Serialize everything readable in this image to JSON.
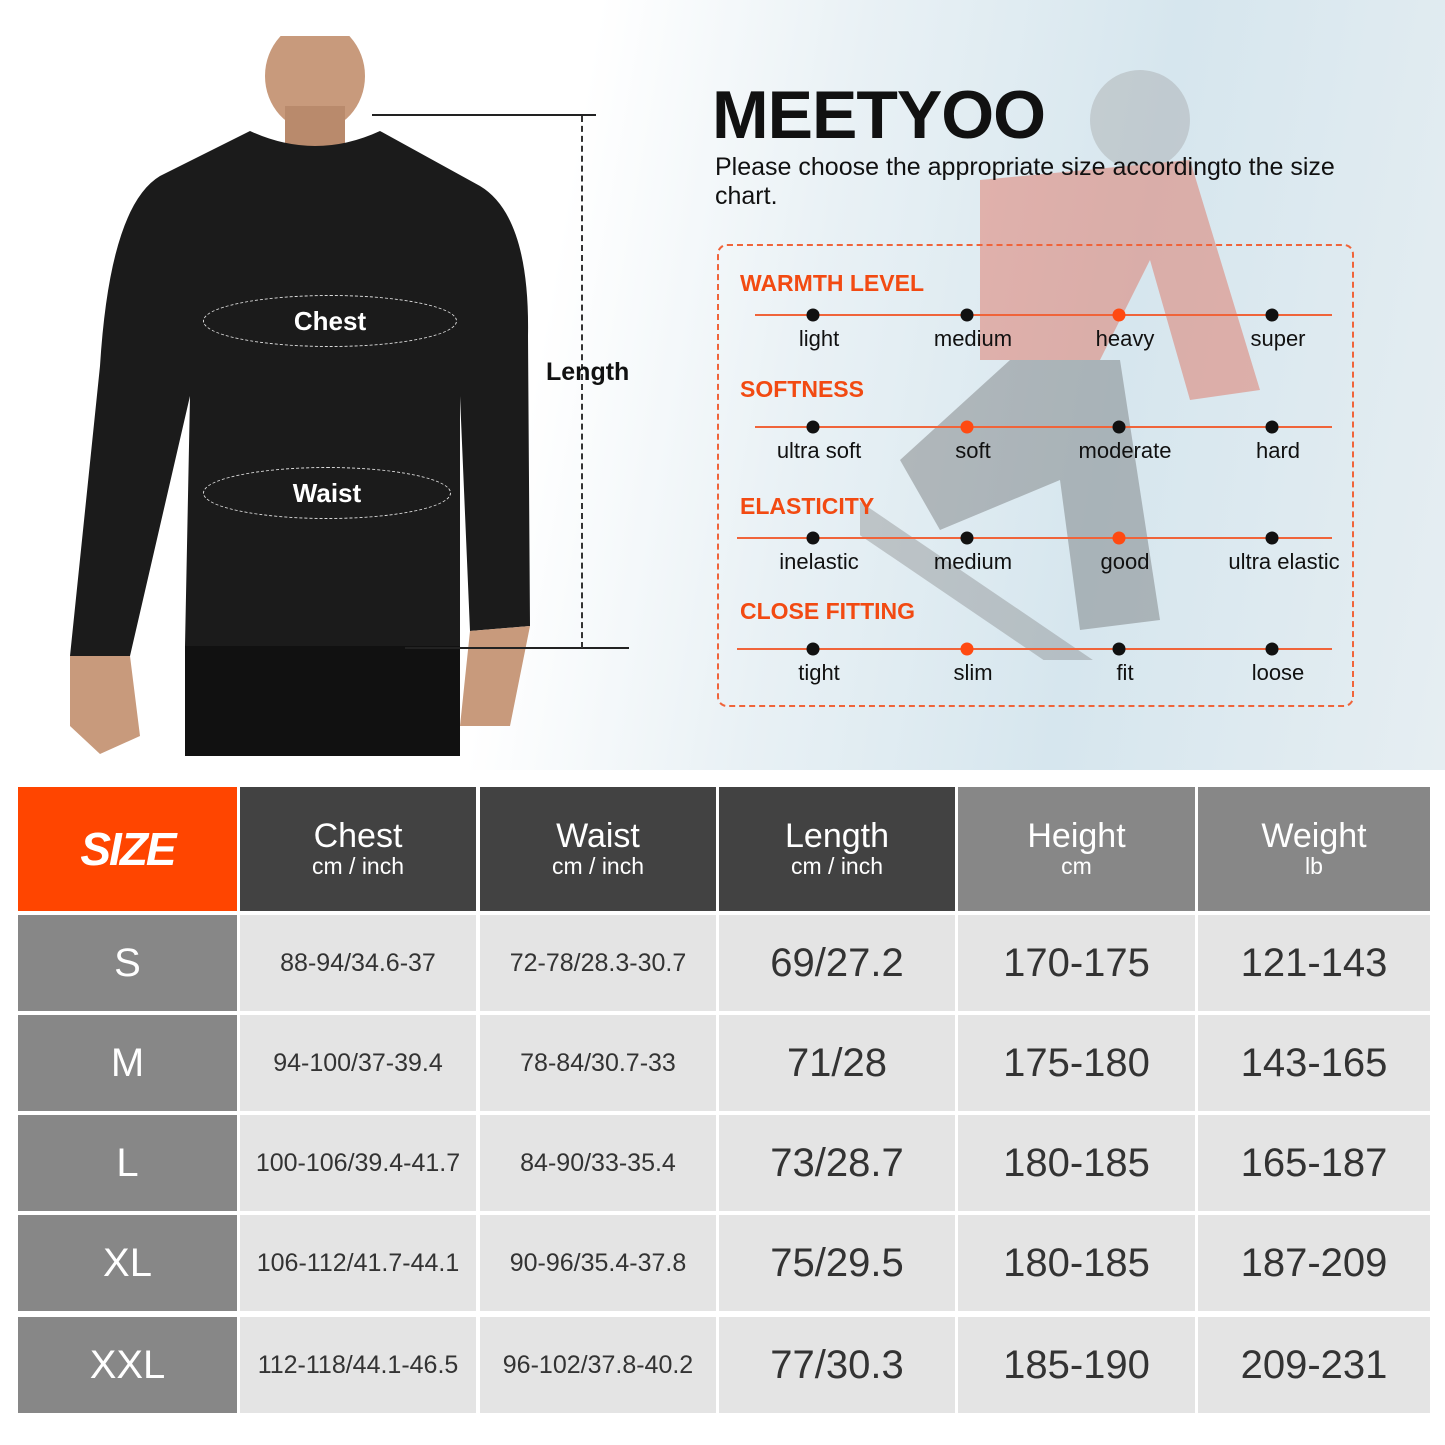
{
  "brand": "MEETYOO",
  "intro": "Please choose the appropriate size accordingto the size chart.",
  "figure": {
    "chest_label": "Chest",
    "waist_label": "Waist",
    "length_label": "Length"
  },
  "colors": {
    "accent": "#ff4500",
    "dark_header": "#424242",
    "gray_header": "#878787",
    "cell": "#e4e4e4"
  },
  "ratings": [
    {
      "title": "WARMTH LEVEL",
      "levels": [
        "light",
        "medium",
        "heavy",
        "super"
      ],
      "selected": 2
    },
    {
      "title": "SOFTNESS",
      "levels": [
        "ultra soft",
        "soft",
        "moderate",
        "hard"
      ],
      "selected": 1
    },
    {
      "title": "ELASTICITY",
      "levels": [
        "inelastic",
        "medium",
        "good",
        "ultra elastic"
      ],
      "selected": 2
    },
    {
      "title": "CLOSE FITTING",
      "levels": [
        "tight",
        "slim",
        "fit",
        "loose"
      ],
      "selected": 1
    }
  ],
  "table": {
    "size_header": "SIZE",
    "headers": [
      {
        "label": "Chest",
        "unit": "cm  / inch"
      },
      {
        "label": "Waist",
        "unit": "cm  / inch"
      },
      {
        "label": "Length",
        "unit": "cm  / inch"
      },
      {
        "label": "Height",
        "unit": "cm"
      },
      {
        "label": "Weight",
        "unit": "lb"
      }
    ],
    "rows": [
      {
        "size": "S",
        "values": [
          "88-94/34.6-37",
          "72-78/28.3-30.7",
          "69/27.2",
          "170-175",
          "121-143"
        ]
      },
      {
        "size": "M",
        "values": [
          "94-100/37-39.4",
          "78-84/30.7-33",
          "71/28",
          "175-180",
          "143-165"
        ]
      },
      {
        "size": "L",
        "values": [
          "100-106/39.4-41.7",
          "84-90/33-35.4",
          "73/28.7",
          "180-185",
          "165-187"
        ]
      },
      {
        "size": "XL",
        "values": [
          "106-112/41.7-44.1",
          "90-96/35.4-37.8",
          "75/29.5",
          "180-185",
          "187-209"
        ]
      },
      {
        "size": "XXL",
        "values": [
          "112-118/44.1-46.5",
          "96-102/37.8-40.2",
          "77/30.3",
          "185-190",
          "209-231"
        ]
      }
    ]
  }
}
